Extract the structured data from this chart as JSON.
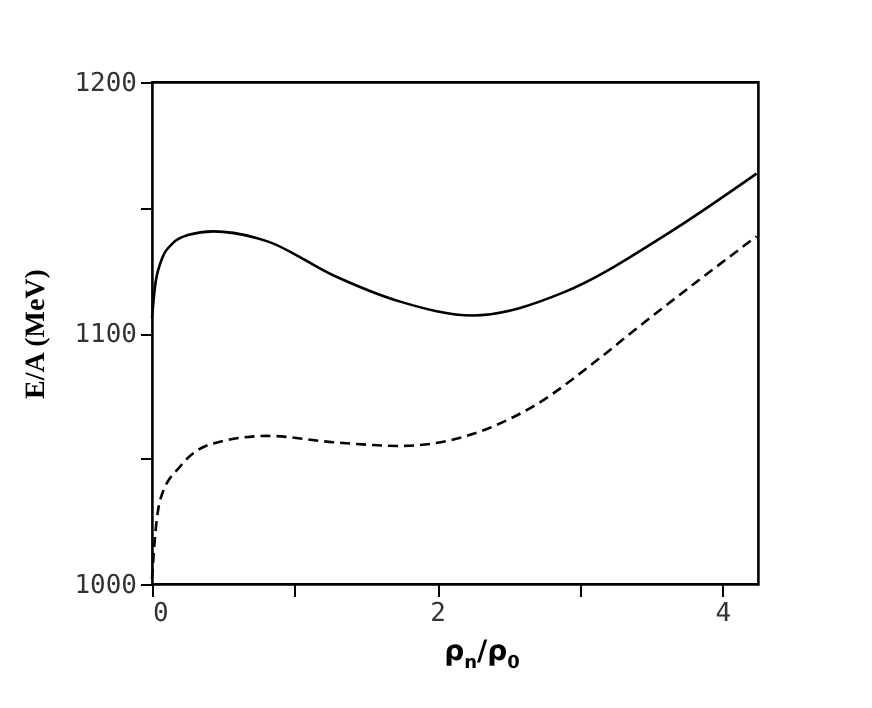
{
  "chart_data": {
    "type": "line",
    "xlabel": "ρ$_{n}$/ρ$_{0}$",
    "ylabel": "E/A (MeV)",
    "xlim": [
      0,
      4.25
    ],
    "xticks": [
      0,
      {
        "value": 1,
        "label": null
      },
      2,
      {
        "value": 3,
        "label": null
      },
      4
    ],
    "ylim": [
      1000,
      1200
    ],
    "yticks": [
      1000,
      {
        "value": 1050,
        "label": null
      },
      1100,
      {
        "value": 1150,
        "label": null
      },
      1200
    ],
    "grid": false,
    "marker": "none",
    "series": [
      {
        "color": "#000000",
        "line_style": "solid",
        "x": [
          0,
          0.02,
          0.06,
          0.15,
          0.25,
          0.43,
          0.81,
          1.27,
          1.74,
          2.25,
          2.9,
          3.6,
          4.24
        ],
        "values": [
          1106,
          1118,
          1128,
          1136,
          1139,
          1140.5,
          1136.5,
          1123,
          1112.5,
          1107,
          1116.5,
          1139,
          1163.5
        ]
      },
      {
        "color": "#000000",
        "line_style": "dashed",
        "x": [
          0,
          0.02,
          0.06,
          0.2,
          0.43,
          0.81,
          1.27,
          1.74,
          2.07,
          2.68,
          3.14,
          3.37,
          4.24
        ],
        "values": [
          1002,
          1018,
          1034,
          1047,
          1056,
          1059,
          1056.5,
          1055,
          1057,
          1071,
          1090,
          1100.5,
          1138.5
        ]
      }
    ]
  }
}
